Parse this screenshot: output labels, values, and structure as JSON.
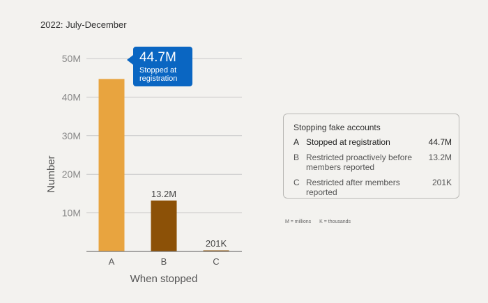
{
  "period": "2022: July-December",
  "chart_data": {
    "type": "bar",
    "categories": [
      "A",
      "B",
      "C"
    ],
    "values": [
      44700000,
      13200000,
      201000
    ],
    "data_labels": [
      "",
      "13.2M",
      "201K"
    ],
    "colors": [
      "#e8a43f",
      "#8c5107",
      "#8c5107"
    ],
    "ylim": [
      0,
      50000000
    ],
    "yticks": [
      10000000,
      20000000,
      30000000,
      40000000,
      50000000
    ],
    "ytick_labels": [
      "10M",
      "20M",
      "30M",
      "40M",
      "50M"
    ],
    "xlabel": "When stopped",
    "ylabel": "Number",
    "grid": true
  },
  "callout": {
    "value": "44.7M",
    "description": "Stopped at registration",
    "color": "#0a66c2"
  },
  "legend": {
    "title": "Stopping fake accounts",
    "items": [
      {
        "key": "A",
        "label": "Stopped at registration",
        "value": "44.7M"
      },
      {
        "key": "B",
        "label": "Restricted proactively before members reported",
        "value": "13.2M"
      },
      {
        "key": "C",
        "label": "Restricted after members reported",
        "value": "201K"
      }
    ]
  },
  "footnote": {
    "millions": "M = millions",
    "thousands": "K = thousands"
  }
}
